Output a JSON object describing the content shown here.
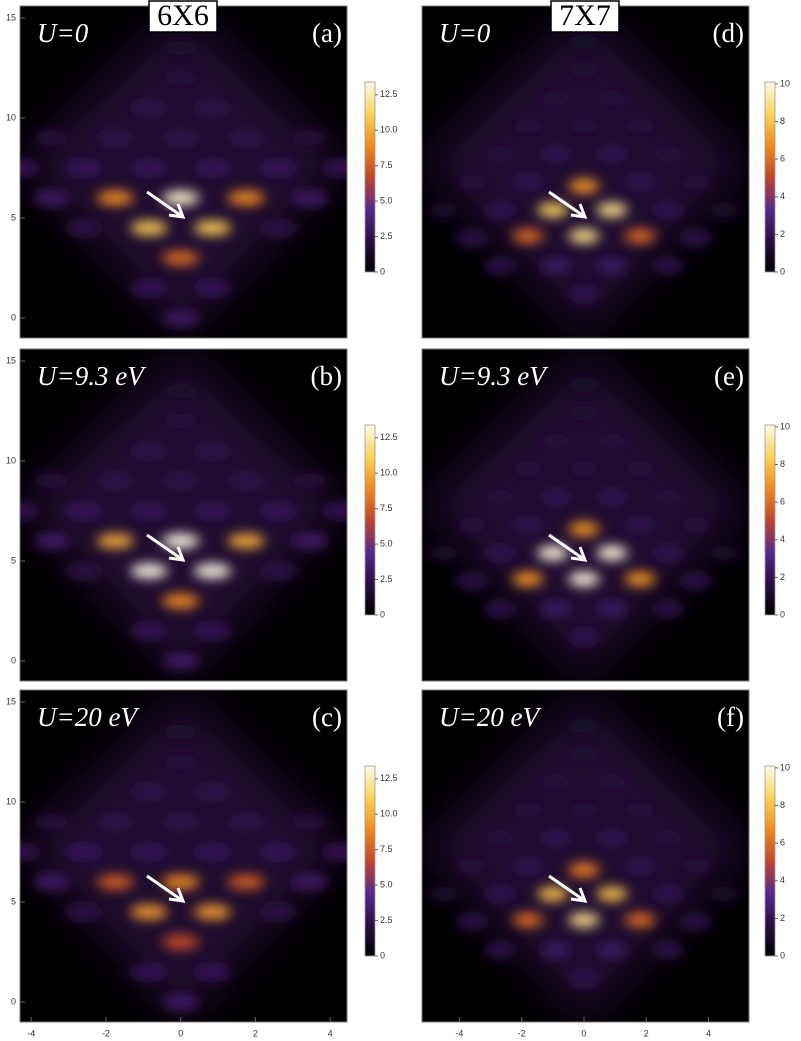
{
  "chart_data": [
    {
      "type": "density",
      "title": "6X6",
      "annotation": "U=0",
      "panel_label": "(a)",
      "xlim": [
        -4.3,
        4.45
      ],
      "ylim": [
        -1,
        15.6
      ],
      "yticks": [
        0,
        5,
        10,
        15
      ],
      "clim": [
        0,
        13.4
      ],
      "cticks": [
        0,
        2.5,
        {
          "value": 5,
          "label": "5.0"
        },
        7.5,
        {
          "value": 10,
          "label": "10.0"
        },
        12.5
      ],
      "colormap": [
        "#000000",
        "#2a0f45",
        "#5a2a8a",
        "#c2452e",
        "#f08a1e",
        "#fbd35a",
        "#fffbe8"
      ],
      "peaks": {
        "x": [
          0,
          -0.85,
          0.85,
          0,
          -1.75,
          1.75,
          -3.45,
          3.45,
          -4.3,
          4.3,
          -0.85,
          0.85,
          -2.6,
          2.6,
          -0.85,
          0.85,
          0,
          -2.6,
          2.6,
          0,
          -1.75,
          1.75,
          -0.85,
          0.85,
          0,
          -3.45,
          3.45,
          0
        ],
        "y": [
          6,
          4.5,
          4.5,
          3,
          6,
          6,
          6,
          6,
          7.5,
          7.5,
          7.5,
          7.5,
          7.5,
          7.5,
          1.5,
          1.5,
          0,
          4.5,
          4.5,
          9,
          9,
          9,
          10.5,
          10.5,
          12,
          9,
          9,
          13.5
        ],
        "values": [
          13,
          11,
          11,
          8,
          9,
          9,
          3.5,
          3.5,
          3,
          3,
          3,
          3,
          3,
          3,
          3,
          3,
          3.5,
          2.5,
          2.5,
          2.5,
          2.5,
          2.5,
          2.5,
          2.5,
          2,
          2,
          2,
          1.5
        ]
      }
    },
    {
      "type": "density",
      "annotation": "U=9.3 eV",
      "panel_label": "(b)",
      "xlim": [
        -4.3,
        4.45
      ],
      "ylim": [
        -1,
        15.6
      ],
      "yticks": [
        0,
        5,
        10,
        15
      ],
      "clim": [
        0,
        13.4
      ],
      "cticks": [
        0,
        2.5,
        {
          "value": 5,
          "label": "5.0"
        },
        7.5,
        {
          "value": 10,
          "label": "10.0"
        },
        12.5
      ],
      "colormap": [
        "#000000",
        "#2a0f45",
        "#5a2a8a",
        "#c2452e",
        "#f08a1e",
        "#fbd35a",
        "#fffbe8"
      ],
      "peaks": {
        "x": [
          0,
          -0.85,
          0.85,
          0,
          -1.75,
          1.75,
          -3.45,
          3.45,
          -4.3,
          4.3,
          -0.85,
          0.85,
          -2.6,
          2.6,
          -0.85,
          0.85,
          0,
          -2.6,
          2.6,
          0,
          -1.75,
          1.75,
          -0.85,
          0.85,
          0,
          -3.45,
          3.45,
          0
        ],
        "y": [
          6,
          4.5,
          4.5,
          3,
          6,
          6,
          6,
          6,
          7.5,
          7.5,
          7.5,
          7.5,
          7.5,
          7.5,
          1.5,
          1.5,
          0,
          4.5,
          4.5,
          9,
          9,
          9,
          10.5,
          10.5,
          12,
          9,
          9,
          13.5
        ],
        "values": [
          13.5,
          13.5,
          13.5,
          9,
          10,
          10,
          3.5,
          3.5,
          3,
          3,
          3,
          3,
          3,
          3,
          3,
          3,
          3.5,
          2.5,
          2.5,
          2.5,
          2.5,
          2.5,
          2.5,
          2.5,
          2,
          2,
          2,
          1.5
        ]
      }
    },
    {
      "type": "density",
      "annotation": "U=20 eV",
      "panel_label": "(c)",
      "xlim": [
        -4.3,
        4.45
      ],
      "ylim": [
        -1,
        15.6
      ],
      "xticks": [
        -4,
        -2,
        0,
        2,
        4
      ],
      "yticks": [
        0,
        5,
        10,
        15
      ],
      "clim": [
        0,
        13.4
      ],
      "cticks": [
        0,
        2.5,
        {
          "value": 5,
          "label": "5.0"
        },
        7.5,
        {
          "value": 10,
          "label": "10.0"
        },
        12.5
      ],
      "colormap": [
        "#000000",
        "#2a0f45",
        "#5a2a8a",
        "#c2452e",
        "#f08a1e",
        "#fbd35a",
        "#fffbe8"
      ],
      "peaks": {
        "x": [
          0,
          -0.85,
          0.85,
          0,
          -1.75,
          1.75,
          -3.45,
          3.45,
          -4.3,
          4.3,
          -0.85,
          0.85,
          -2.6,
          2.6,
          -0.85,
          0.85,
          0,
          -2.6,
          2.6,
          0,
          -1.75,
          1.75,
          -0.85,
          0.85,
          0,
          -3.45,
          3.45,
          0
        ],
        "y": [
          6,
          4.5,
          4.5,
          3,
          6,
          6,
          6,
          6,
          7.5,
          7.5,
          7.5,
          7.5,
          7.5,
          7.5,
          1.5,
          1.5,
          0,
          4.5,
          4.5,
          9,
          9,
          9,
          10.5,
          10.5,
          12,
          9,
          9,
          13.5
        ],
        "values": [
          9,
          9.5,
          9.5,
          7,
          7.5,
          7.5,
          3.5,
          3.5,
          3,
          3,
          3,
          3,
          3,
          3,
          3,
          3,
          3.5,
          2.5,
          2.5,
          2.5,
          2.5,
          2.5,
          2.5,
          2.5,
          2,
          2,
          2,
          1.5
        ]
      }
    },
    {
      "type": "density",
      "title": "7X7",
      "annotation": "U=0",
      "panel_label": "(d)",
      "xlim": [
        -5.2,
        5.3
      ],
      "ylim": [
        -1,
        15.6
      ],
      "clim": [
        0,
        10.1
      ],
      "cticks": [
        0,
        2,
        4,
        6,
        8,
        10
      ],
      "colormap": [
        "#000000",
        "#2a0f45",
        "#5a2a8a",
        "#c2452e",
        "#f08a1e",
        "#fbd35a",
        "#fffbe8"
      ],
      "peaks": {
        "x": [
          0,
          -1,
          0.9,
          0,
          -1.8,
          1.8,
          -0.9,
          0.9,
          0,
          -2.7,
          2.7,
          -3.6,
          3.6,
          -2.7,
          2.7,
          -1.8,
          1.8,
          -3.6,
          3.6,
          -0.9,
          0.9,
          -2.7,
          2.7,
          0,
          -1.8,
          1.8,
          -0.9,
          0.9,
          0,
          -4.5,
          4.5,
          0
        ],
        "y": [
          6.6,
          5.4,
          5.4,
          4.1,
          4.1,
          4.1,
          2.6,
          2.6,
          1.2,
          2.6,
          2.6,
          4,
          4,
          5.4,
          5.4,
          6.8,
          6.8,
          6.8,
          6.8,
          8.2,
          8.2,
          8.2,
          8.2,
          9.6,
          9.6,
          9.6,
          11,
          11,
          12.4,
          5.4,
          5.4,
          13.8
        ],
        "values": [
          7,
          8.5,
          9,
          9,
          6,
          6,
          2.5,
          2.5,
          2,
          2,
          2,
          2,
          2,
          2,
          2,
          2,
          2,
          1.5,
          1.5,
          2,
          2,
          1.5,
          1.5,
          1.5,
          1.5,
          1.5,
          1.5,
          1.5,
          1.2,
          1.2,
          1.2,
          1
        ]
      }
    },
    {
      "type": "density",
      "annotation": "U=9.3 eV",
      "panel_label": "(e)",
      "xlim": [
        -5.2,
        5.3
      ],
      "ylim": [
        -1,
        15.6
      ],
      "clim": [
        0,
        10.1
      ],
      "cticks": [
        0,
        2,
        4,
        6,
        8,
        10
      ],
      "colormap": [
        "#000000",
        "#2a0f45",
        "#5a2a8a",
        "#c2452e",
        "#f08a1e",
        "#fbd35a",
        "#fffbe8"
      ],
      "peaks": {
        "x": [
          0,
          -1,
          0.9,
          0,
          -1.8,
          1.8,
          -0.9,
          0.9,
          0,
          -2.7,
          2.7,
          -3.6,
          3.6,
          -2.7,
          2.7,
          -1.8,
          1.8,
          -3.6,
          3.6,
          -0.9,
          0.9,
          -2.7,
          2.7,
          0,
          -1.8,
          1.8,
          -0.9,
          0.9,
          0,
          -4.5,
          4.5,
          0
        ],
        "y": [
          6.6,
          5.4,
          5.4,
          4.1,
          4.1,
          4.1,
          2.6,
          2.6,
          1.2,
          2.6,
          2.6,
          4,
          4,
          5.4,
          5.4,
          6.8,
          6.8,
          6.8,
          6.8,
          8.2,
          8.2,
          8.2,
          8.2,
          9.6,
          9.6,
          9.6,
          11,
          11,
          12.4,
          5.4,
          5.4,
          13.8
        ],
        "values": [
          7,
          10,
          10,
          10,
          7,
          7,
          2.5,
          2.5,
          2,
          2,
          2,
          2,
          2,
          2,
          2,
          2,
          2,
          1.5,
          1.5,
          2,
          2,
          1.5,
          1.5,
          1.5,
          1.5,
          1.5,
          1.5,
          1.5,
          1.2,
          1.2,
          1.2,
          1
        ]
      }
    },
    {
      "type": "density",
      "annotation": "U=20 eV",
      "panel_label": "(f)",
      "xlim": [
        -5.2,
        5.3
      ],
      "ylim": [
        -1,
        15.6
      ],
      "xticks": [
        -4,
        -2,
        0,
        2,
        4
      ],
      "clim": [
        0,
        10.1
      ],
      "cticks": [
        0,
        2,
        4,
        6,
        8,
        10
      ],
      "colormap": [
        "#000000",
        "#2a0f45",
        "#5a2a8a",
        "#c2452e",
        "#f08a1e",
        "#fbd35a",
        "#fffbe8"
      ],
      "peaks": {
        "x": [
          0,
          -1,
          0.9,
          0,
          -1.8,
          1.8,
          -0.9,
          0.9,
          0,
          -2.7,
          2.7,
          -3.6,
          3.6,
          -2.7,
          2.7,
          -1.8,
          1.8,
          -3.6,
          3.6,
          -0.9,
          0.9,
          -2.7,
          2.7,
          0,
          -1.8,
          1.8,
          -0.9,
          0.9,
          0,
          -4.5,
          4.5,
          0
        ],
        "y": [
          6.6,
          5.4,
          5.4,
          4.1,
          4.1,
          4.1,
          2.6,
          2.6,
          1.2,
          2.6,
          2.6,
          4,
          4,
          5.4,
          5.4,
          6.8,
          6.8,
          6.8,
          6.8,
          8.2,
          8.2,
          8.2,
          8.2,
          9.6,
          9.6,
          9.6,
          11,
          11,
          12.4,
          5.4,
          5.4,
          13.8
        ],
        "values": [
          6.5,
          8,
          8,
          9,
          6,
          6,
          2.5,
          2.5,
          2,
          2,
          2,
          2,
          2,
          2,
          2,
          2,
          2,
          1.5,
          1.5,
          2,
          2,
          1.5,
          1.5,
          1.5,
          1.5,
          1.5,
          1.5,
          1.5,
          1.2,
          1.2,
          1.2,
          1
        ]
      }
    }
  ]
}
